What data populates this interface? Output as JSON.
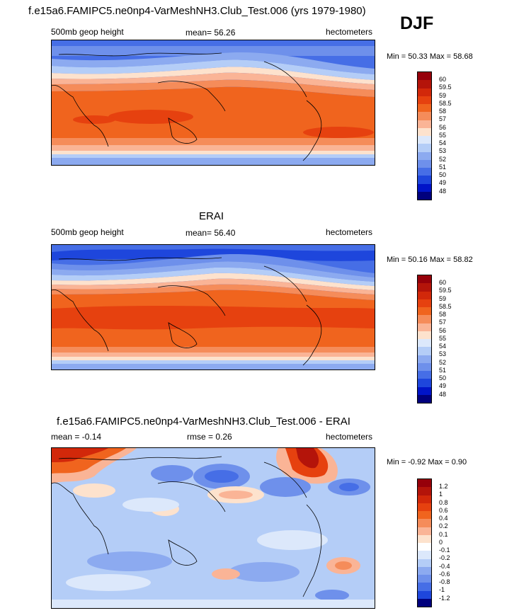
{
  "season": "DJF",
  "panels": [
    {
      "title": "f.e15a6.FAMIPC5.ne0np4-VarMeshNH3.Club_Test.006 (yrs 1979-1980)",
      "left_label": "500mb geop height",
      "center_label": "mean=  56.26",
      "right_label": "hectometers",
      "minmax": "Min =  50.33 Max =  58.68"
    },
    {
      "title": "ERAI",
      "left_label": "500mb geop height",
      "center_label": "mean=  56.40",
      "right_label": "hectometers",
      "minmax": "Min =  50.16 Max =  58.82"
    },
    {
      "title": "f.e15a6.FAMIPC5.ne0np4-VarMeshNH3.Club_Test.006 - ERAI",
      "left_label": "mean =  -0.14",
      "center_label": "rmse =   0.26",
      "right_label": "hectometers",
      "minmax": "Min =  -0.92 Max =   0.90"
    }
  ],
  "chart_data": [
    {
      "type": "heatmap",
      "title": "f.e15a6.FAMIPC5.ne0np4-VarMeshNH3.Club_Test.006 (yrs 1979-1980)",
      "variable": "500mb geop height",
      "units": "hectometers",
      "mean": 56.26,
      "min": 50.33,
      "max": 58.68,
      "levels": [
        "60",
        "59.5",
        "59",
        "58.5",
        "58",
        "57",
        "56",
        "55",
        "54",
        "53",
        "52",
        "51",
        "50",
        "49",
        "48"
      ],
      "colors": [
        "#96000a",
        "#b4140a",
        "#d2280a",
        "#e6410f",
        "#f0641e",
        "#f58c5a",
        "#fab496",
        "#fde2cd",
        "#dce8fb",
        "#b4cdf7",
        "#8caaf0",
        "#6e90eb",
        "#466ee6",
        "#1e46dc",
        "#0014c8",
        "#00007d"
      ]
    },
    {
      "type": "heatmap",
      "title": "ERAI",
      "variable": "500mb geop height",
      "units": "hectometers",
      "mean": 56.4,
      "min": 50.16,
      "max": 58.82,
      "levels": [
        "60",
        "59.5",
        "59",
        "58.5",
        "58",
        "57",
        "56",
        "55",
        "54",
        "53",
        "52",
        "51",
        "50",
        "49",
        "48"
      ],
      "colors": [
        "#96000a",
        "#b4140a",
        "#d2280a",
        "#e6410f",
        "#f0641e",
        "#f58c5a",
        "#fab496",
        "#fde2cd",
        "#dce8fb",
        "#b4cdf7",
        "#8caaf0",
        "#6e90eb",
        "#466ee6",
        "#1e46dc",
        "#0014c8",
        "#00007d"
      ]
    },
    {
      "type": "heatmap",
      "title": "f.e15a6.FAMIPC5.ne0np4-VarMeshNH3.Club_Test.006 - ERAI",
      "units": "hectometers",
      "mean": -0.14,
      "rmse": 0.26,
      "min": -0.92,
      "max": 0.9,
      "levels": [
        "1.2",
        "1",
        "0.8",
        "0.6",
        "0.4",
        "0.2",
        "0.1",
        "0",
        "-0.1",
        "-0.2",
        "-0.4",
        "-0.6",
        "-0.8",
        "-1",
        "-1.2"
      ],
      "colors": [
        "#96000a",
        "#b4140a",
        "#d2280a",
        "#e6410f",
        "#f0641e",
        "#f58c5a",
        "#fab496",
        "#fde2cd",
        "#ffffff",
        "#dce8fb",
        "#b4cdf7",
        "#8caaf0",
        "#6e90eb",
        "#466ee6",
        "#1e46dc",
        "#00007d"
      ]
    }
  ]
}
